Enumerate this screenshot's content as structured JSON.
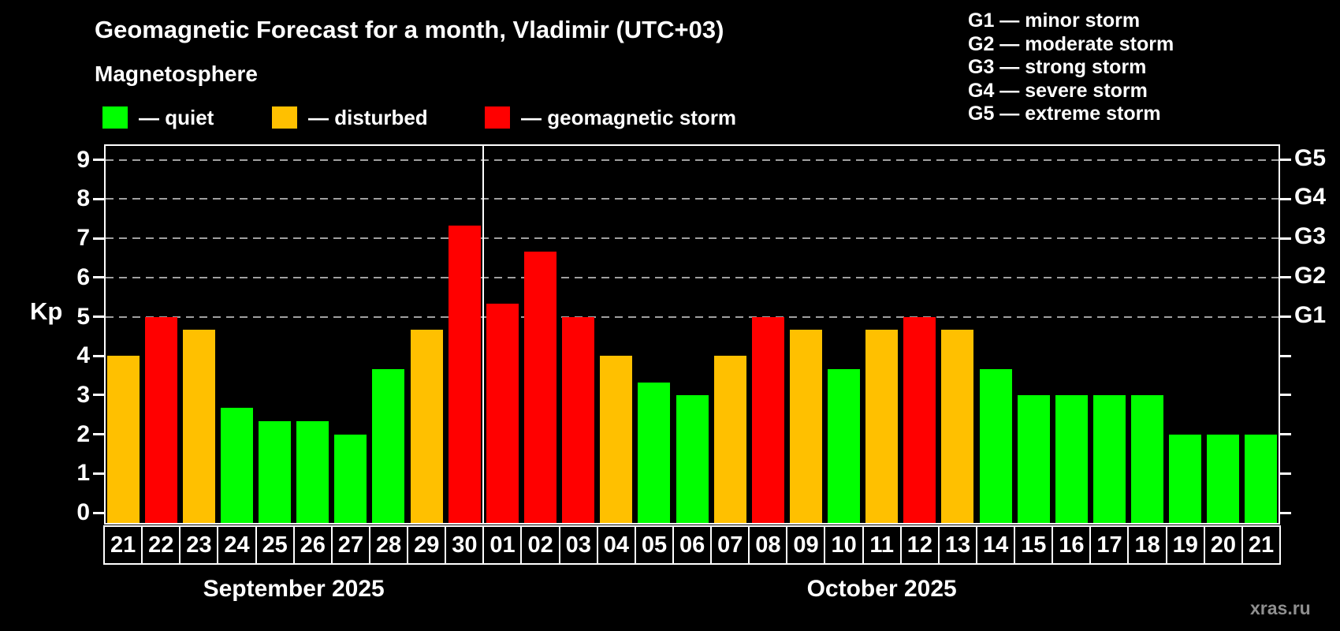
{
  "header": {
    "title": "Geomagnetic Forecast for a month, Vladimir (UTC+03)",
    "subtitle": "Magnetosphere"
  },
  "legend": {
    "items": [
      {
        "key": "quiet",
        "label": "— quiet",
        "color": "#00ff00"
      },
      {
        "key": "disturbed",
        "label": "— disturbed",
        "color": "#ffc000"
      },
      {
        "key": "storm",
        "label": "— geomagnetic storm",
        "color": "#ff0000"
      }
    ]
  },
  "storm_scale": {
    "items": [
      "G1 — minor storm",
      "G2 — moderate storm",
      "G3 — strong storm",
      "G4 — severe storm",
      "G5 — extreme storm"
    ]
  },
  "axis": {
    "kp_label": "Kp",
    "left_ticks": [
      0,
      1,
      2,
      3,
      4,
      5,
      6,
      7,
      8,
      9
    ],
    "right_labels": [
      {
        "kp": 5,
        "label": "G1"
      },
      {
        "kp": 6,
        "label": "G2"
      },
      {
        "kp": 7,
        "label": "G3"
      },
      {
        "kp": 8,
        "label": "G4"
      },
      {
        "kp": 9,
        "label": "G5"
      }
    ],
    "gridlines_kp": [
      5,
      6,
      7,
      8,
      9
    ]
  },
  "months": [
    {
      "label": "September 2025"
    },
    {
      "label": "October 2025"
    }
  ],
  "watermark": "xras.ru",
  "colors": {
    "background": "#000000",
    "text": "#ffffff",
    "grid": "#a0a0a0",
    "watermark": "#8f8f8f",
    "quiet": "#00ff00",
    "disturbed": "#ffc000",
    "storm": "#ff0000"
  },
  "chart_data": {
    "type": "bar",
    "title": "Geomagnetic Forecast for a month, Vladimir (UTC+03)",
    "xlabel": "",
    "ylabel": "Kp",
    "ylim": [
      0,
      9.4
    ],
    "grid": "dashed horizontal lines at Kp 5,6,7,8,9 (G1–G5)",
    "legend_position": "top-left",
    "categories": [
      "21",
      "22",
      "23",
      "24",
      "25",
      "26",
      "27",
      "28",
      "29",
      "30",
      "01",
      "02",
      "03",
      "04",
      "05",
      "06",
      "07",
      "08",
      "09",
      "10",
      "11",
      "12",
      "13",
      "14",
      "15",
      "16",
      "17",
      "18",
      "19",
      "20",
      "21"
    ],
    "points": [
      {
        "day": "21",
        "month": "September 2025",
        "kp": 4.0,
        "level": "disturbed"
      },
      {
        "day": "22",
        "month": "September 2025",
        "kp": 5.0,
        "level": "storm"
      },
      {
        "day": "23",
        "month": "September 2025",
        "kp": 4.67,
        "level": "disturbed"
      },
      {
        "day": "24",
        "month": "September 2025",
        "kp": 2.67,
        "level": "quiet"
      },
      {
        "day": "25",
        "month": "September 2025",
        "kp": 2.33,
        "level": "quiet"
      },
      {
        "day": "26",
        "month": "September 2025",
        "kp": 2.33,
        "level": "quiet"
      },
      {
        "day": "27",
        "month": "September 2025",
        "kp": 2.0,
        "level": "quiet"
      },
      {
        "day": "28",
        "month": "September 2025",
        "kp": 3.67,
        "level": "quiet"
      },
      {
        "day": "29",
        "month": "September 2025",
        "kp": 4.67,
        "level": "disturbed"
      },
      {
        "day": "30",
        "month": "September 2025",
        "kp": 7.33,
        "level": "storm"
      },
      {
        "day": "01",
        "month": "October 2025",
        "kp": 5.33,
        "level": "storm"
      },
      {
        "day": "02",
        "month": "October 2025",
        "kp": 6.67,
        "level": "storm"
      },
      {
        "day": "03",
        "month": "October 2025",
        "kp": 5.0,
        "level": "storm"
      },
      {
        "day": "04",
        "month": "October 2025",
        "kp": 4.0,
        "level": "disturbed"
      },
      {
        "day": "05",
        "month": "October 2025",
        "kp": 3.33,
        "level": "quiet"
      },
      {
        "day": "06",
        "month": "October 2025",
        "kp": 3.0,
        "level": "quiet"
      },
      {
        "day": "07",
        "month": "October 2025",
        "kp": 4.0,
        "level": "disturbed"
      },
      {
        "day": "08",
        "month": "October 2025",
        "kp": 5.0,
        "level": "storm"
      },
      {
        "day": "09",
        "month": "October 2025",
        "kp": 4.67,
        "level": "disturbed"
      },
      {
        "day": "10",
        "month": "October 2025",
        "kp": 3.67,
        "level": "quiet"
      },
      {
        "day": "11",
        "month": "October 2025",
        "kp": 4.67,
        "level": "disturbed"
      },
      {
        "day": "12",
        "month": "October 2025",
        "kp": 5.0,
        "level": "storm"
      },
      {
        "day": "13",
        "month": "October 2025",
        "kp": 4.67,
        "level": "disturbed"
      },
      {
        "day": "14",
        "month": "October 2025",
        "kp": 3.67,
        "level": "quiet"
      },
      {
        "day": "15",
        "month": "October 2025",
        "kp": 3.0,
        "level": "quiet"
      },
      {
        "day": "16",
        "month": "October 2025",
        "kp": 3.0,
        "level": "quiet"
      },
      {
        "day": "17",
        "month": "October 2025",
        "kp": 3.0,
        "level": "quiet"
      },
      {
        "day": "18",
        "month": "October 2025",
        "kp": 3.0,
        "level": "quiet"
      },
      {
        "day": "19",
        "month": "October 2025",
        "kp": 2.0,
        "level": "quiet"
      },
      {
        "day": "20",
        "month": "October 2025",
        "kp": 2.0,
        "level": "quiet"
      },
      {
        "day": "21",
        "month": "October 2025",
        "kp": 2.0,
        "level": "quiet"
      }
    ]
  }
}
